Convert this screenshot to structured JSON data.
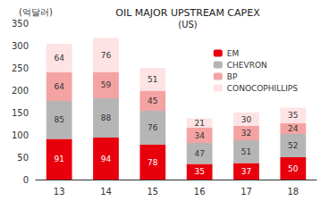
{
  "chart_data": {
    "type": "bar",
    "title": "OIL MAJOR UPSTREAM CAPEX",
    "subtitle": "(US)",
    "y_label": "(억달러)",
    "categories": [
      "13",
      "14",
      "15",
      "16",
      "17",
      "18"
    ],
    "series": [
      {
        "name": "EM",
        "color": "#e8000d",
        "values": [
          91,
          94,
          78,
          35,
          37,
          50
        ]
      },
      {
        "name": "CHEVRON",
        "color": "#b5b5b5",
        "values": [
          85,
          88,
          76,
          47,
          51,
          52
        ]
      },
      {
        "name": "BP",
        "color": "#f4a3a3",
        "values": [
          64,
          59,
          45,
          34,
          32,
          24
        ]
      },
      {
        "name": "CONOCOPHILLIPS",
        "color": "#fde3e3",
        "values": [
          64,
          76,
          51,
          21,
          30,
          35
        ]
      }
    ],
    "ylim": [
      0,
      350
    ],
    "yticks": [
      0,
      50,
      100,
      150,
      200,
      250,
      300,
      350
    ],
    "stacked": true,
    "data_labels": true,
    "grid": false,
    "legend": "upper right"
  }
}
